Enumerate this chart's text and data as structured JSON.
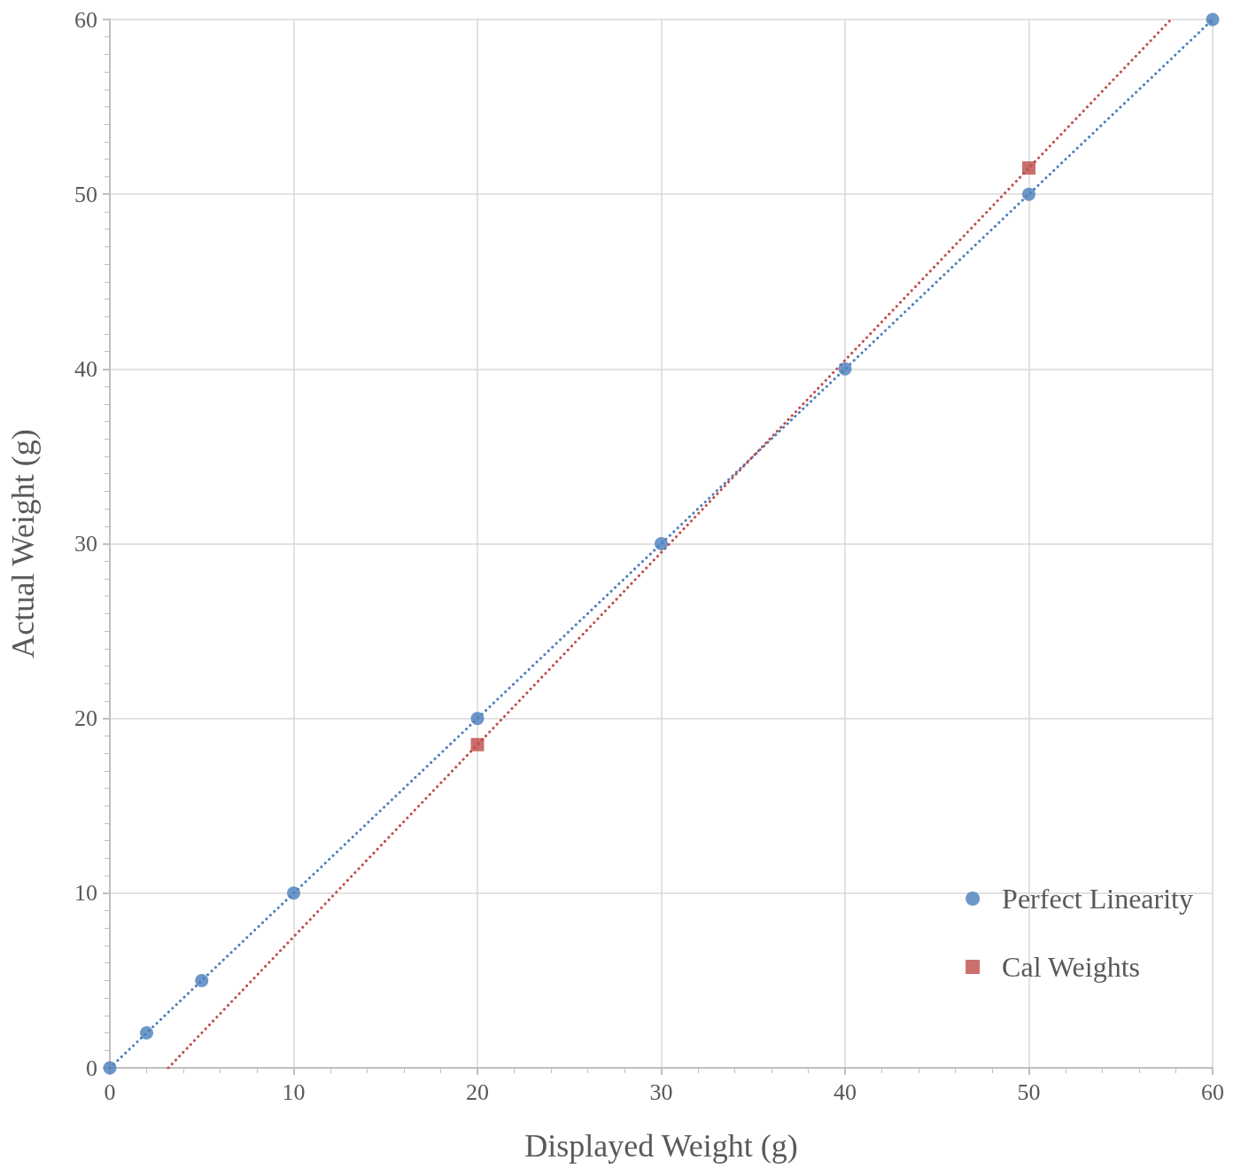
{
  "chart_data": {
    "type": "scatter",
    "xlabel": "Displayed Weight (g)",
    "ylabel": "Actual Weight (g)",
    "xlim": [
      0,
      60
    ],
    "xticks": [
      0,
      10,
      20,
      30,
      40,
      50,
      60
    ],
    "ylim": [
      0,
      60
    ],
    "yticks": [
      0,
      10,
      20,
      30,
      40,
      50,
      60
    ],
    "grid": true,
    "legend": "bottom right",
    "series": [
      {
        "type": "line",
        "color": "#4a7ebb",
        "x": [
          0,
          60
        ],
        "values": [
          0,
          60
        ],
        "marker": "none",
        "line_style": "dotted"
      },
      {
        "type": "line",
        "color": "#be4b48",
        "x": [
          3.18,
          57.73
        ],
        "values": [
          0,
          60
        ],
        "marker": "none",
        "line_style": "dotted"
      },
      {
        "name": "Perfect Linearity",
        "color": "#4a7ebb",
        "marker": "circle",
        "x": [
          0,
          2,
          5,
          10,
          20,
          30,
          40,
          50,
          60
        ],
        "values": [
          0,
          2,
          5,
          10,
          20,
          30,
          40,
          50,
          60
        ]
      },
      {
        "name": "Cal Weights",
        "color": "#be4b48",
        "marker": "square",
        "x": [
          20,
          50
        ],
        "values": [
          18.5,
          51.5
        ]
      }
    ]
  }
}
